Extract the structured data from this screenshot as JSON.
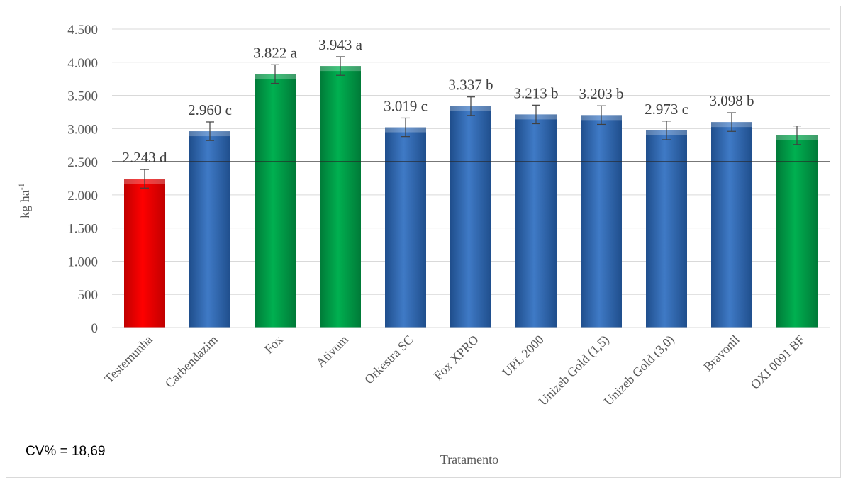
{
  "chart_data": {
    "type": "bar",
    "categories": [
      "Testemunha",
      "Carbendazim",
      "Fox",
      "Ativum",
      "Orkestra SC",
      "Fox XPRO",
      "UPL 2000",
      "Unizeb Gold (1,5)",
      "Unizeb Gold (3,0)",
      "Bravonil",
      "OXI 0091 BF"
    ],
    "values": [
      2243,
      2960,
      3822,
      3943,
      3019,
      3337,
      3213,
      3203,
      2973,
      3098,
      2900
    ],
    "errors": [
      140,
      140,
      140,
      140,
      140,
      140,
      140,
      140,
      140,
      140,
      140
    ],
    "data_labels": [
      "2.243 d",
      "2.960 c",
      "3.822 a",
      "3.943 a",
      "3.019 c",
      "3.337 b",
      "3.213 b",
      "3.203 b",
      "2.973 c",
      "3.098 b",
      ""
    ],
    "bar_colors": [
      "#ff0000",
      "#3f7ac6",
      "#00b050",
      "#00b050",
      "#3f7ac6",
      "#3f7ac6",
      "#3f7ac6",
      "#3f7ac6",
      "#3f7ac6",
      "#3f7ac6",
      "#00b050"
    ],
    "bar_color_dark": {
      "#ff0000": "#c00000",
      "#3f7ac6": "#1f4e8c",
      "#00b050": "#007a38"
    },
    "y_tick_labels": [
      "0",
      "500",
      "1.000",
      "1.500",
      "2.000",
      "2.500",
      "3.000",
      "3.500",
      "4.000",
      "4.500"
    ],
    "y_tick_values": [
      0,
      500,
      1000,
      1500,
      2000,
      2500,
      3000,
      3500,
      4000,
      4500
    ],
    "ylim": [
      0,
      4500
    ],
    "reference_line": 2500,
    "xlabel": "Tratamento",
    "ylabel": "kg ha",
    "ylabel_sup": "-1",
    "grid": true,
    "gridline_color": "#d9d9d9",
    "reference_line_color": "#262626"
  },
  "note": "CV% = 18,69"
}
